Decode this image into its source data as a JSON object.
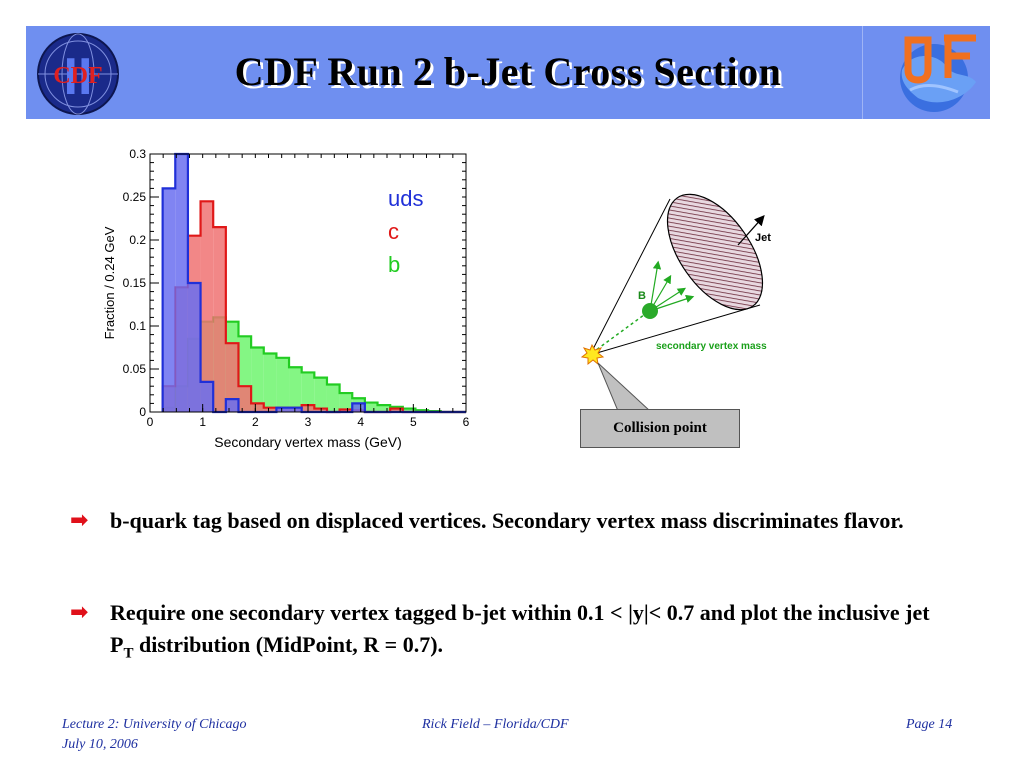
{
  "slide": {
    "title": "CDF Run 2 b-Jet Cross Section"
  },
  "logos": {
    "left_text": "CDF",
    "left_numeral": "II"
  },
  "chart_data": {
    "type": "bar",
    "xlabel": "Secondary vertex mass (GeV)",
    "ylabel": "Fraction / 0.24 GeV",
    "xlim": [
      0,
      6
    ],
    "ylim": [
      0,
      0.3
    ],
    "xticks": [
      "0",
      "1",
      "2",
      "3",
      "4",
      "5",
      "6"
    ],
    "yticks": [
      "0",
      "0.05",
      "0.1",
      "0.15",
      "0.2",
      "0.25",
      "0.3"
    ],
    "bin_width": 0.24,
    "x_start": 0.24,
    "legend": [
      "uds",
      "c",
      "b"
    ],
    "legend_position": "top-right",
    "series": [
      {
        "name": "uds",
        "color": "#2030d8",
        "fill": "#6a6ef0",
        "values": [
          0.26,
          0.3,
          0.15,
          0.035,
          0.0,
          0.015,
          0.0,
          0.0,
          0.0,
          0.005,
          0.005,
          0.0,
          0.0,
          0.0,
          0.0,
          0.01,
          0.0,
          0.0,
          0.0,
          0.0,
          0.0,
          0.0,
          0.0,
          0.0
        ]
      },
      {
        "name": "c",
        "color": "#e01818",
        "fill": "#f07272",
        "values": [
          0.03,
          0.145,
          0.205,
          0.245,
          0.215,
          0.08,
          0.03,
          0.01,
          0.005,
          0.005,
          0.005,
          0.008,
          0.004,
          0.0,
          0.003,
          0.002,
          0.0,
          0.0,
          0.004,
          0.0,
          0.0,
          0.0,
          0.0,
          0.0
        ]
      },
      {
        "name": "b",
        "color": "#22cc22",
        "fill": "#6ef56e",
        "values": [
          0.005,
          0.03,
          0.085,
          0.105,
          0.11,
          0.105,
          0.088,
          0.075,
          0.068,
          0.063,
          0.052,
          0.046,
          0.04,
          0.032,
          0.022,
          0.016,
          0.011,
          0.008,
          0.006,
          0.004,
          0.002,
          0.001,
          0.0,
          0.0
        ]
      }
    ]
  },
  "diagram": {
    "jet_label": "Jet",
    "b_label": "B",
    "svm_label": "secondary vertex mass",
    "collision_label": "Collision point"
  },
  "bullets": [
    {
      "text": "b-quark tag based on displaced vertices. Secondary vertex mass discriminates flavor."
    },
    {
      "text_a": "Require one secondary vertex tagged b-jet within 0.1 < |y|< 0.7 and plot the inclusive jet P",
      "sub": "T",
      "text_b": " distribution (MidPoint, R = 0.7)."
    }
  ],
  "footer": {
    "left_line1": "Lecture 2: University of Chicago",
    "left_line2": "July 10, 2006",
    "center": "Rick Field – Florida/CDF",
    "right": "Page 14"
  }
}
